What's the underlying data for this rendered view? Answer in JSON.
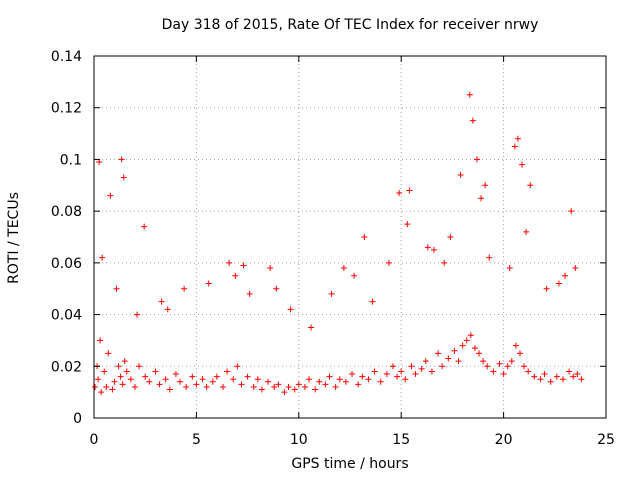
{
  "chart_data": {
    "type": "scatter",
    "title": "Day 318 of 2015, Rate Of TEC Index for receiver nrwy",
    "xlabel": "GPS time / hours",
    "ylabel": "ROTI / TECUs",
    "xlim": [
      0,
      25
    ],
    "ylim": [
      0,
      0.14
    ],
    "xticks": [
      0,
      5,
      10,
      15,
      20,
      25
    ],
    "xtick_labels": [
      "0",
      "5",
      "10",
      "15",
      "20",
      "25"
    ],
    "yticks": [
      0,
      0.02,
      0.04,
      0.06,
      0.08,
      0.1,
      0.12,
      0.14
    ],
    "ytick_labels": [
      "0",
      "0.02",
      "0.04",
      "0.06",
      "0.08",
      "0.1",
      "0.12",
      "0.14"
    ],
    "grid": true,
    "marker": "+",
    "color": "#ff0000",
    "series": [
      {
        "name": "ROTI",
        "x": [
          0.05,
          0.15,
          0.2,
          0.3,
          0.35,
          0.5,
          0.6,
          0.7,
          0.9,
          1.0,
          1.2,
          1.3,
          1.4,
          1.5,
          1.6,
          1.8,
          2.0,
          2.2,
          2.5,
          2.7,
          3.0,
          3.2,
          3.5,
          3.7,
          4.0,
          4.2,
          4.5,
          4.8,
          5.0,
          5.3,
          5.5,
          5.8,
          6.0,
          6.3,
          6.5,
          6.8,
          7.0,
          7.2,
          7.5,
          7.8,
          8.0,
          8.2,
          8.5,
          8.8,
          9.0,
          9.3,
          9.5,
          9.8,
          10.0,
          10.3,
          10.5,
          10.8,
          11.0,
          11.3,
          11.5,
          11.8,
          12.0,
          12.3,
          12.6,
          12.9,
          13.1,
          13.4,
          13.7,
          14.0,
          14.3,
          14.6,
          14.8,
          15.0,
          15.2,
          15.5,
          15.7,
          16.0,
          16.2,
          16.5,
          16.8,
          17.0,
          17.3,
          17.6,
          17.8,
          18.0,
          18.2,
          18.4,
          18.6,
          18.8,
          19.0,
          19.2,
          19.5,
          19.8,
          20.0,
          20.2,
          20.4,
          20.6,
          20.8,
          21.0,
          21.2,
          21.5,
          21.8,
          22.0,
          22.3,
          22.6,
          22.9,
          23.2,
          23.4,
          23.6,
          23.8,
          0.25,
          1.35,
          1.45,
          2.45,
          3.6,
          6.6,
          7.3,
          8.6,
          12.2,
          13.2,
          14.9,
          15.4,
          16.3,
          17.1,
          18.35,
          18.5,
          18.7,
          19.1,
          20.55,
          20.7,
          20.9,
          21.3,
          23.0,
          23.3,
          0.4,
          0.8,
          1.1,
          2.1,
          3.3,
          4.4,
          5.6,
          6.9,
          7.6,
          8.9,
          9.6,
          10.6,
          11.6,
          12.7,
          13.6,
          14.4,
          15.3,
          16.6,
          17.4,
          17.9,
          18.9,
          19.3,
          20.3,
          21.1,
          22.1,
          22.7,
          23.5
        ],
        "y": [
          0.012,
          0.02,
          0.015,
          0.03,
          0.01,
          0.018,
          0.012,
          0.025,
          0.011,
          0.014,
          0.02,
          0.016,
          0.013,
          0.022,
          0.018,
          0.015,
          0.012,
          0.02,
          0.016,
          0.014,
          0.018,
          0.013,
          0.015,
          0.011,
          0.017,
          0.014,
          0.012,
          0.016,
          0.013,
          0.015,
          0.012,
          0.014,
          0.016,
          0.012,
          0.018,
          0.015,
          0.02,
          0.013,
          0.016,
          0.012,
          0.015,
          0.011,
          0.014,
          0.012,
          0.013,
          0.01,
          0.012,
          0.011,
          0.013,
          0.012,
          0.015,
          0.011,
          0.014,
          0.013,
          0.016,
          0.012,
          0.015,
          0.014,
          0.017,
          0.013,
          0.016,
          0.015,
          0.018,
          0.014,
          0.017,
          0.02,
          0.016,
          0.018,
          0.015,
          0.02,
          0.017,
          0.019,
          0.022,
          0.018,
          0.025,
          0.02,
          0.023,
          0.026,
          0.022,
          0.028,
          0.03,
          0.032,
          0.027,
          0.025,
          0.022,
          0.02,
          0.018,
          0.021,
          0.017,
          0.02,
          0.022,
          0.028,
          0.025,
          0.02,
          0.018,
          0.016,
          0.015,
          0.017,
          0.014,
          0.016,
          0.015,
          0.018,
          0.016,
          0.017,
          0.015,
          0.099,
          0.1,
          0.093,
          0.074,
          0.042,
          0.06,
          0.059,
          0.058,
          0.058,
          0.07,
          0.087,
          0.088,
          0.066,
          0.06,
          0.125,
          0.115,
          0.1,
          0.09,
          0.105,
          0.108,
          0.098,
          0.09,
          0.055,
          0.08,
          0.062,
          0.086,
          0.05,
          0.04,
          0.045,
          0.05,
          0.052,
          0.055,
          0.048,
          0.05,
          0.042,
          0.035,
          0.048,
          0.055,
          0.045,
          0.06,
          0.075,
          0.065,
          0.07,
          0.094,
          0.085,
          0.062,
          0.058,
          0.072,
          0.05,
          0.052,
          0.058
        ]
      }
    ]
  }
}
